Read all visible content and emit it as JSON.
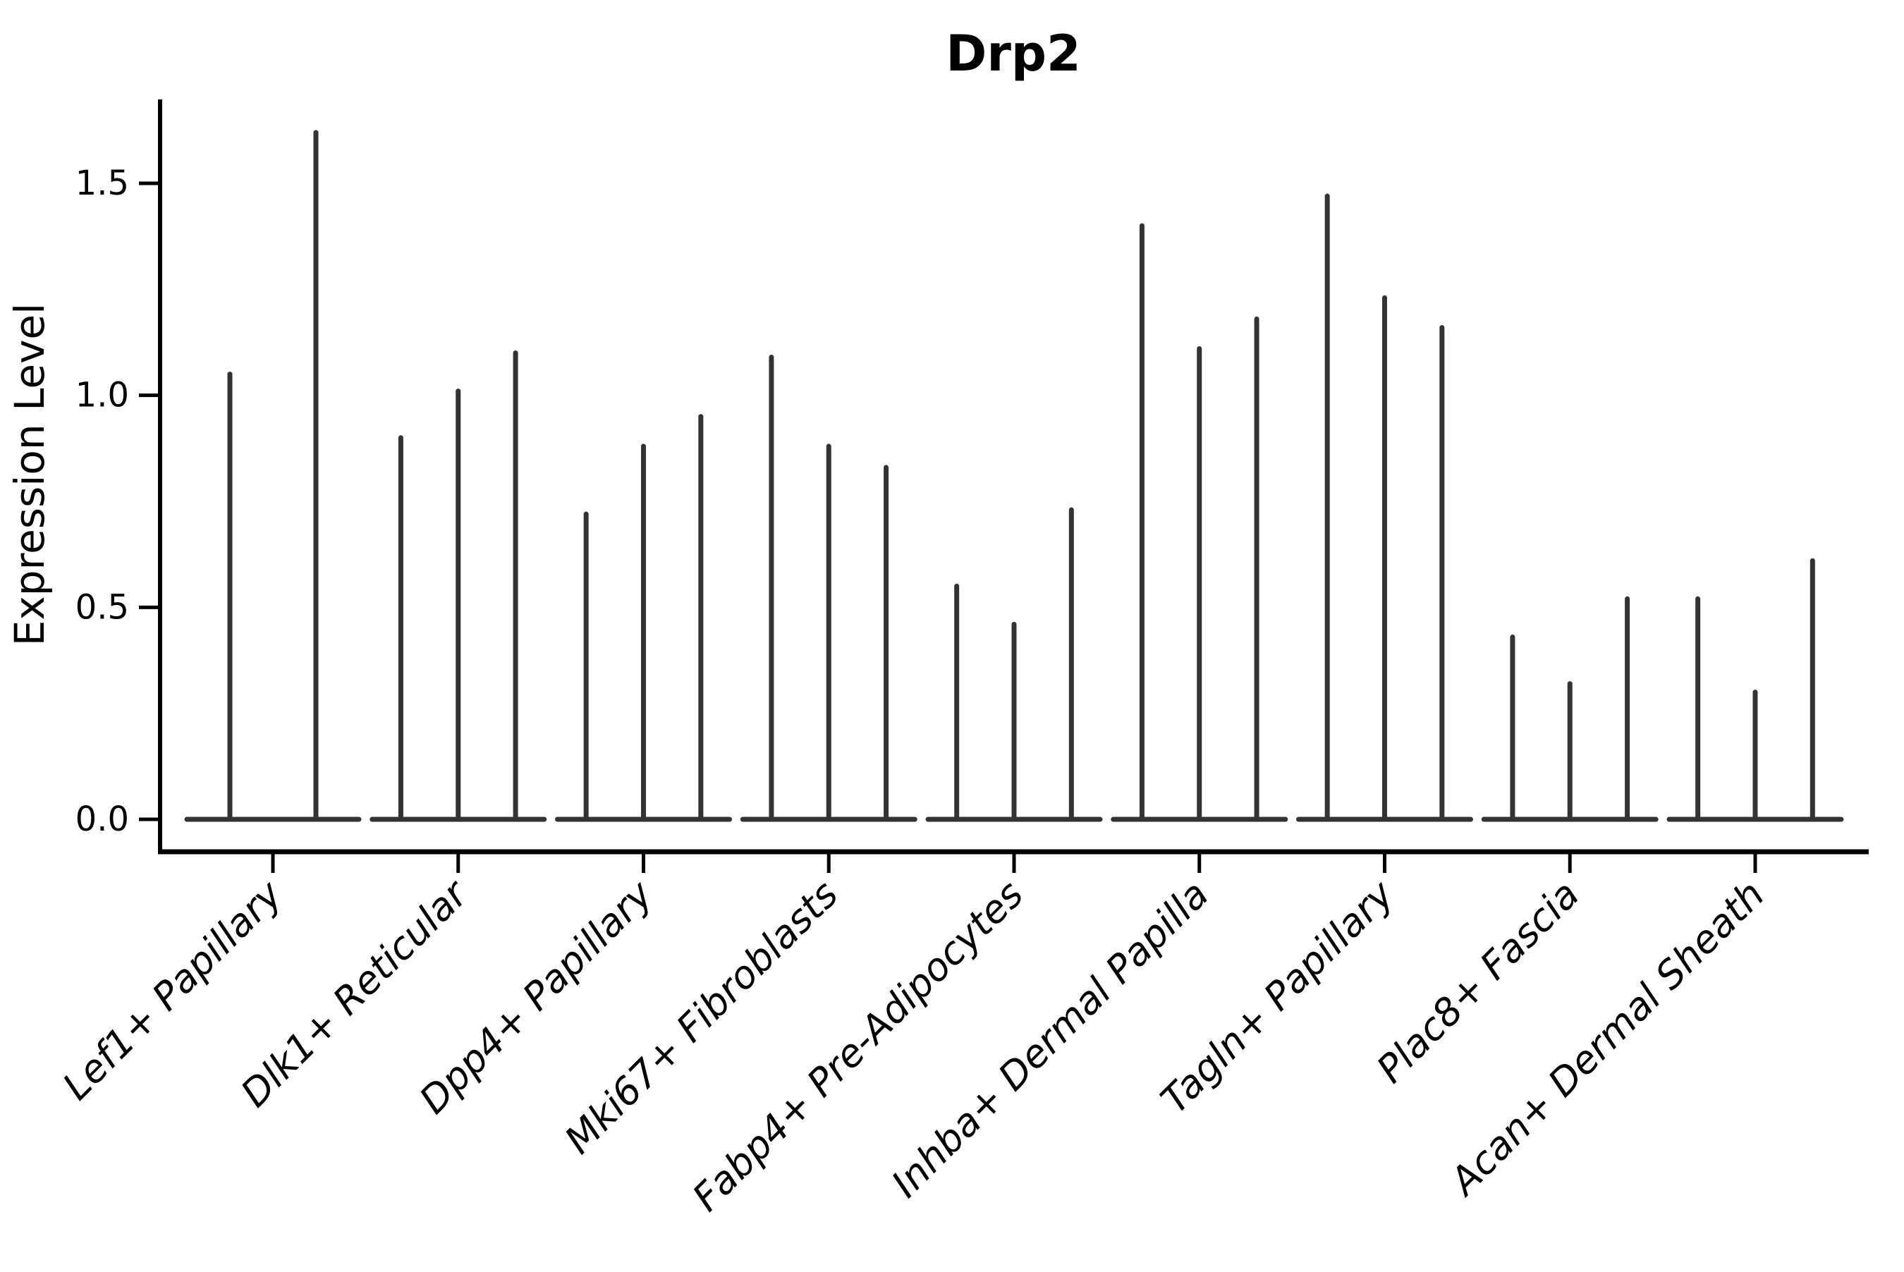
{
  "title": "Drp2",
  "chart_data": {
    "type": "violin",
    "title": "Drp2",
    "xlabel": "",
    "ylabel": "Expression Level",
    "yticks": [
      0.0,
      0.5,
      1.0,
      1.5
    ],
    "ytick_labels": [
      "0.0",
      "0.5",
      "1.0",
      "1.5"
    ],
    "ylim": [
      -0.08,
      1.7
    ],
    "grid": false,
    "legend": "none",
    "xtick_rotation_deg": 45,
    "xtick_style": "italic",
    "description": "Single-cell expression violin plot; violins are nearly flat at 0 with thin density spikes reaching each violin's maximum expression value.",
    "categories": [
      "Lef1+ Papillary",
      "Dlk1+ Reticular",
      "Dpp4+ Papillary",
      "Mki67+ Fibroblasts",
      "Fabp4+ Pre-Adipocytes",
      "Inhba+ Dermal Papilla",
      "Tagln+ Papillary",
      "Plac8+ Fascia",
      "Acan+ Dermal Sheath"
    ],
    "groups": [
      {
        "category": "Lef1+ Papillary",
        "violin_maxima": [
          1.05,
          1.62
        ]
      },
      {
        "category": "Dlk1+ Reticular",
        "violin_maxima": [
          0.9,
          1.01,
          1.1
        ]
      },
      {
        "category": "Dpp4+ Papillary",
        "violin_maxima": [
          0.72,
          0.88,
          0.95
        ]
      },
      {
        "category": "Mki67+ Fibroblasts",
        "violin_maxima": [
          1.09,
          0.88,
          0.83
        ]
      },
      {
        "category": "Fabp4+ Pre-Adipocytes",
        "violin_maxima": [
          0.55,
          0.46,
          0.73
        ]
      },
      {
        "category": "Inhba+ Dermal Papilla",
        "violin_maxima": [
          1.4,
          1.11,
          1.18
        ]
      },
      {
        "category": "Tagln+ Papillary",
        "violin_maxima": [
          1.47,
          1.23,
          1.16
        ]
      },
      {
        "category": "Plac8+ Fascia",
        "violin_maxima": [
          0.43,
          0.32,
          0.52
        ]
      },
      {
        "category": "Acan+ Dermal Sheath",
        "violin_maxima": [
          0.52,
          0.3,
          0.61
        ]
      }
    ],
    "colors": {
      "violin_stroke": "#333333",
      "axis": "#000000",
      "text": "#000000",
      "background": "#ffffff"
    }
  }
}
